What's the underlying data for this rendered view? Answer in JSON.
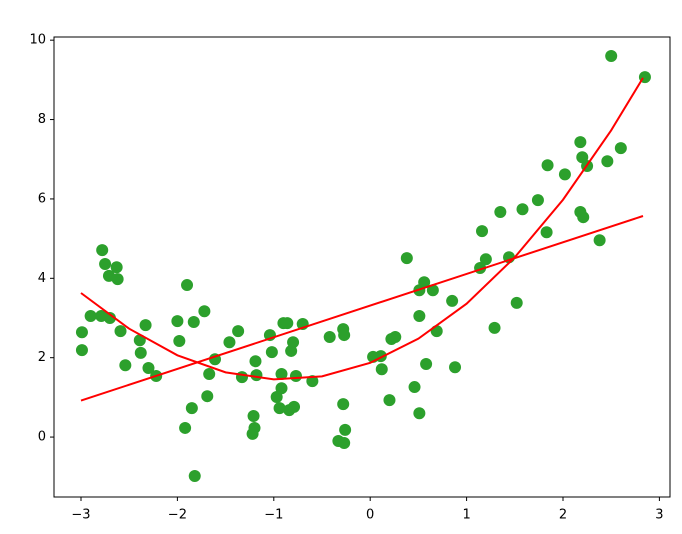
{
  "chart_data": {
    "type": "scatter",
    "xlim": [
      -3.28,
      3.11
    ],
    "ylim": [
      -1.51,
      10.08
    ],
    "xticks": [
      {
        "value": -3,
        "label": "−3"
      },
      {
        "value": -2,
        "label": "−2"
      },
      {
        "value": -1,
        "label": "−1"
      },
      0,
      1,
      2,
      3
    ],
    "yticks": [
      0,
      2,
      4,
      6,
      8,
      10
    ],
    "series": [
      {
        "type": "scatter",
        "color": "#2ca02c",
        "x": [
          -2.99,
          -2.99,
          -2.9,
          -2.79,
          -2.78,
          -2.75,
          -2.71,
          -2.7,
          -2.63,
          -2.62,
          -2.59,
          -2.54,
          -2.39,
          -2.38,
          -2.33,
          -2.3,
          -2.22,
          -2.0,
          -1.98,
          -1.92,
          -1.9,
          -1.85,
          -1.83,
          -1.82,
          -1.72,
          -1.69,
          -1.67,
          -1.61,
          -1.46,
          -1.37,
          -1.33,
          -1.22,
          -1.21,
          -1.2,
          -1.19,
          -1.18,
          -1.04,
          -1.02,
          -0.97,
          -0.94,
          -0.92,
          -0.92,
          -0.9,
          -0.86,
          -0.84,
          -0.82,
          -0.8,
          -0.79,
          -0.77,
          -0.7,
          -0.6,
          -0.42,
          -0.28,
          -0.28,
          -0.26,
          -0.33,
          -0.27,
          -0.27,
          0.03,
          0.11,
          0.12,
          0.2,
          0.22,
          0.26,
          0.38,
          0.46,
          0.51,
          0.51,
          0.51,
          0.56,
          0.58,
          0.65,
          0.69,
          0.85,
          0.88,
          1.16,
          1.14,
          1.2,
          1.29,
          1.35,
          1.44,
          1.52,
          1.58,
          1.74,
          1.83,
          1.84,
          2.02,
          2.18,
          2.18,
          2.2,
          2.21,
          2.25,
          2.38,
          2.46,
          2.5,
          2.6,
          2.85
        ],
        "y": [
          2.64,
          2.19,
          3.05,
          3.05,
          4.71,
          4.36,
          4.06,
          3.0,
          4.28,
          3.98,
          2.67,
          1.81,
          2.44,
          2.12,
          2.82,
          1.74,
          1.54,
          2.92,
          2.42,
          0.23,
          3.83,
          0.73,
          2.9,
          -0.98,
          3.17,
          1.03,
          1.59,
          1.96,
          2.39,
          2.67,
          1.51,
          0.08,
          0.53,
          0.23,
          1.91,
          1.56,
          2.57,
          2.14,
          1.01,
          0.73,
          1.23,
          1.59,
          2.87,
          2.87,
          0.68,
          2.17,
          2.39,
          0.76,
          1.54,
          2.85,
          1.41,
          2.52,
          2.72,
          0.83,
          0.18,
          -0.1,
          -0.15,
          2.57,
          2.02,
          2.04,
          1.71,
          0.93,
          2.47,
          2.52,
          4.51,
          1.26,
          0.6,
          3.05,
          3.7,
          3.9,
          1.84,
          3.7,
          2.67,
          3.43,
          1.76,
          5.19,
          4.26,
          4.48,
          2.75,
          5.67,
          4.53,
          3.38,
          5.74,
          5.97,
          5.16,
          6.85,
          6.62,
          7.43,
          5.67,
          7.05,
          5.54,
          6.83,
          4.96,
          6.95,
          9.6,
          7.28,
          9.07
        ]
      },
      {
        "type": "line",
        "color": "#ff0000",
        "x": [
          -3,
          2.83
        ],
        "y": [
          0.92,
          5.57
        ]
      },
      {
        "type": "line",
        "color": "#ff0000",
        "x": [
          -3,
          -2.5,
          -2,
          -1.5,
          -1,
          -0.5,
          0,
          0.5,
          1,
          1.5,
          2,
          2.5,
          2.83
        ],
        "y": [
          3.63,
          2.73,
          2.06,
          1.63,
          1.455,
          1.53,
          1.87,
          2.48,
          3.36,
          4.53,
          5.98,
          7.73,
          9.05
        ]
      }
    ]
  }
}
